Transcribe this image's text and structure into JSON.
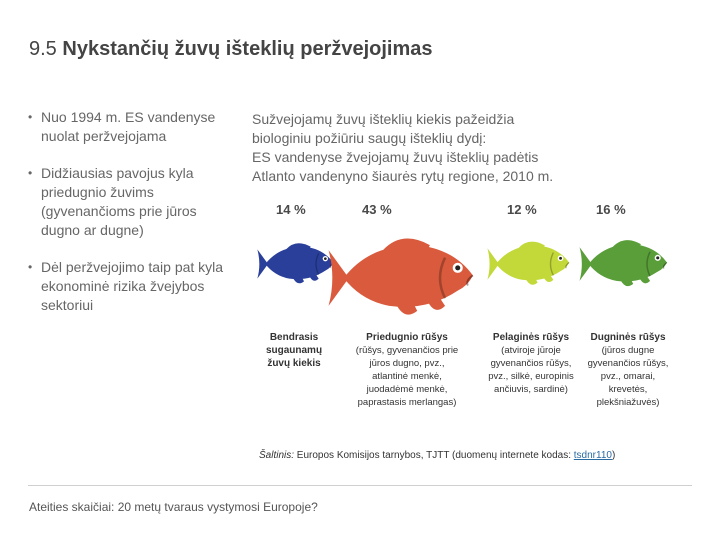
{
  "title": {
    "number": "9.5",
    "text": "Nykstančių žuvų išteklių peržvejojimas"
  },
  "bullets": [
    "Nuo 1994 m. ES vandenyse nuolat peržvejojama",
    "Didžiausias pavojus kyla priedugnio žuvims (gyvenančioms prie jūros dugno ar dugne)",
    "Dėl peržvejojimo taip pat kyla ekonominė rizika žvejybos sektoriui"
  ],
  "intro": [
    "Sužvejojamų žuvų išteklių kiekis pažeidžia",
    "biologiniu požiūriu saugų išteklių dydį:",
    "ES vandenyse žvejojamų žuvų išteklių padėtis",
    "Atlanto vandenyno šiaurės rytų regione, 2010 m."
  ],
  "fish": [
    {
      "percent": "14 %",
      "color": "#2a3f9a",
      "icon": "fish-icon"
    },
    {
      "percent": "43 %",
      "color": "#d95a3c",
      "icon": "fish-icon"
    },
    {
      "percent": "12 %",
      "color": "#c3d93a",
      "icon": "fish-icon"
    },
    {
      "percent": "16 %",
      "color": "#5a9e3a",
      "icon": "fish-icon"
    }
  ],
  "columns": [
    {
      "head": "Bendrasis sugaunamų žuvų kiekis",
      "body": ""
    },
    {
      "head": "Priedugnio rūšys",
      "body": "(rūšys, gyvenančios prie jūros dugno, pvz., atlantinė menkė, juodadėmė menkė, paprastasis merlangas)"
    },
    {
      "head": "Pelaginės rūšys",
      "body": "(atviroje jūroje gyvenančios rūšys, pvz., silkė, europinis ančiuvis, sardinė)"
    },
    {
      "head": "Dugninės rūšys",
      "body": "(jūros dugne gyvenančios rūšys, pvz., omarai, krevetės, plekšniažuvės)"
    }
  ],
  "source": {
    "label": "Šaltinis:",
    "text": " Europos Komisijos tarnybos, TJTT (duomenų internete kodas: ",
    "code": "tsdnr110",
    "end": ")"
  },
  "footer": "Ateities skaičiai: 20 metų tvaraus vystymosi Europoje?"
}
